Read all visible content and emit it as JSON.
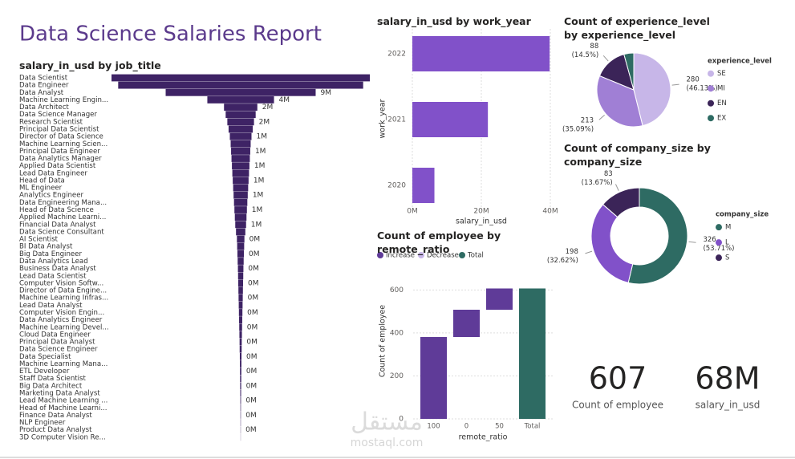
{
  "report_title": "Data Science Salaries Report",
  "cards": [
    {
      "value": 607,
      "label": "Count of employee"
    },
    {
      "value": "68M",
      "label": "salary_in_usd"
    }
  ],
  "watermark": {
    "logo": "مستقل",
    "site": "mostaql.com"
  },
  "chart_data": [
    {
      "type": "funnel",
      "title": "salary_in_usd by job_title",
      "color": "#3e2365",
      "categories": [
        "Data Scientist",
        "Data Engineer",
        "Data Analyst",
        "Machine Learning Engin...",
        "Data Architect",
        "Data Science Manager",
        "Research Scientist",
        "Principal Data Scientist",
        "Director of Data Science",
        "Machine Learning Scien...",
        "Principal Data Engineer",
        "Data Analytics Manager",
        "Applied Data Scientist",
        "Lead Data Engineer",
        "Head of Data",
        "ML Engineer",
        "Analytics Engineer",
        "Data Engineering Mana...",
        "Head of Data Science",
        "Applied Machine Learni...",
        "Financial Data Analyst",
        "Data Science Consultant",
        "AI Scientist",
        "BI Data Analyst",
        "Big Data Engineer",
        "Data Analytics Lead",
        "Business Data Analyst",
        "Lead Data Scientist",
        "Computer Vision Softw...",
        "Director of Data Engine...",
        "Machine Learning Infras...",
        "Lead Data Analyst",
        "Computer Vision Engin...",
        "Data Analytics Engineer",
        "Machine Learning Devel...",
        "Cloud Data Engineer",
        "Principal Data Analyst",
        "Data Science Engineer",
        "Data Specialist",
        "Machine Learning Mana...",
        "ETL Developer",
        "Staff Data Scientist",
        "Big Data Architect",
        "Marketing Data Analyst",
        "Lead Machine Learning ...",
        "Head of Machine Learni...",
        "Finance Data Analyst",
        "NLP Engineer",
        "Product Data Analyst",
        "3D Computer Vision Re..."
      ],
      "values": [
        15500000,
        14700000,
        9000000,
        4000000,
        2000000,
        1800000,
        1600000,
        1450000,
        1300000,
        1200000,
        1150000,
        1100000,
        1050000,
        1000000,
        950000,
        900000,
        850000,
        800000,
        750000,
        700000,
        650000,
        560000,
        450000,
        420000,
        390000,
        360000,
        330000,
        310000,
        290000,
        270000,
        250000,
        230000,
        210000,
        190000,
        170000,
        150000,
        130000,
        120000,
        100000,
        90000,
        80000,
        70000,
        60000,
        50000,
        40000,
        30000,
        25000,
        20000,
        15000,
        10000
      ],
      "value_labels": [
        null,
        null,
        "9M",
        "4M",
        "2M",
        null,
        "2M",
        null,
        "1M",
        null,
        "1M",
        null,
        "1M",
        null,
        "1M",
        null,
        "1M",
        null,
        "1M",
        null,
        "1M",
        null,
        "0M",
        null,
        "0M",
        null,
        "0M",
        null,
        "0M",
        null,
        "0M",
        null,
        "0M",
        null,
        "0M",
        null,
        "0M",
        null,
        "0M",
        null,
        "0M",
        null,
        "0M",
        null,
        "0M",
        null,
        "0M",
        null,
        "0M",
        null
      ]
    },
    {
      "type": "bar",
      "orientation": "horizontal",
      "title": "salary_in_usd by work_year",
      "color": "#8151c9",
      "categories": [
        "2022",
        "2021",
        "2020"
      ],
      "values": [
        39800000,
        21900000,
        6400000
      ],
      "xlim": [
        0,
        40000000
      ],
      "xticks": [
        {
          "value": 0,
          "label": "0M"
        },
        {
          "value": 20000000,
          "label": "20M"
        },
        {
          "value": 40000000,
          "label": "40M"
        }
      ],
      "xlabel": "salary_in_usd",
      "ylabel": "work_year",
      "grid": true
    },
    {
      "type": "pie",
      "title": "Count of experience_level by experience_level",
      "legend_title": "experience_level",
      "categories": [
        "SE",
        "MI",
        "EN",
        "EX"
      ],
      "values": [
        280,
        213,
        88,
        26
      ],
      "percent_labels": [
        "(46.13%)",
        "(35.09%)",
        "(14.5%)",
        null
      ],
      "colors": [
        "#c7b6e8",
        "#a07fd5",
        "#3b2458",
        "#2e6b63"
      ]
    },
    {
      "type": "donut",
      "title": "Count of company_size by company_size",
      "legend_title": "company_size",
      "categories": [
        "M",
        "L",
        "S"
      ],
      "values": [
        326,
        198,
        83
      ],
      "percent_labels": [
        "(53.71%)",
        "(32.62%)",
        "(13.67%)"
      ],
      "colors": [
        "#2e6b63",
        "#8151c9",
        "#3b2458"
      ]
    },
    {
      "type": "waterfall",
      "title": "Count of employee by remote_ratio",
      "categories": [
        "100",
        "0",
        "50",
        "Total"
      ],
      "values": [
        381,
        127,
        99,
        607
      ],
      "is_total": [
        false,
        false,
        false,
        true
      ],
      "legend": [
        {
          "name": "Increase",
          "color": "#5f3b98"
        },
        {
          "name": "Decrease",
          "color": "#c7b6e8"
        },
        {
          "name": "Total",
          "color": "#2e6b63"
        }
      ],
      "ylim": [
        0,
        620
      ],
      "yticks": [
        0,
        200,
        400,
        600
      ],
      "xlabel": "remote_ratio",
      "ylabel": "Count of employee",
      "grid": true
    }
  ]
}
